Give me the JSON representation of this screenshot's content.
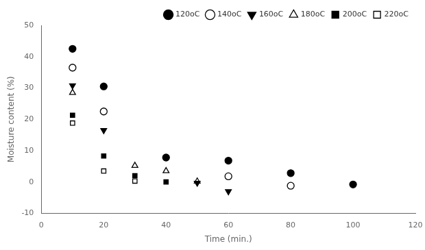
{
  "chart_data": {
    "type": "scatter",
    "x_label": "Time (min.)",
    "y_label": "Moisture content (%)",
    "xlim": [
      0,
      120
    ],
    "ylim": [
      -10,
      50
    ],
    "xticks": [
      0,
      20,
      40,
      60,
      80,
      100,
      120
    ],
    "yticks": [
      -10,
      0,
      10,
      20,
      30,
      40,
      50
    ],
    "grid": false,
    "legend": "upper right",
    "series": [
      {
        "name": "120oC",
        "color": "black",
        "marker": "circle",
        "x": [
          10,
          20,
          40,
          60,
          80,
          100
        ],
        "values": [
          42.5,
          30.5,
          7.8,
          6.8,
          2.8,
          -0.8
        ]
      },
      {
        "name": "140oC",
        "color": "black",
        "marker": "circle-open",
        "x": [
          10,
          20,
          60,
          80
        ],
        "values": [
          36.5,
          22.5,
          1.8,
          -1.2
        ]
      },
      {
        "name": "160oC",
        "color": "black",
        "marker": "triangle-down",
        "x": [
          10,
          20,
          50,
          60
        ],
        "values": [
          30.8,
          16.5,
          -0.3,
          -3.0
        ]
      },
      {
        "name": "180oC",
        "color": "black",
        "marker": "triangle-up-open",
        "x": [
          10,
          30,
          40,
          50
        ],
        "values": [
          28.5,
          5.2,
          3.5,
          0.2
        ]
      },
      {
        "name": "200oC",
        "color": "black",
        "marker": "square",
        "x": [
          10,
          20,
          30,
          40
        ],
        "values": [
          21.3,
          8.3,
          2.0,
          0.0
        ]
      },
      {
        "name": "220oC",
        "color": "black",
        "marker": "square-open",
        "x": [
          10,
          20,
          30
        ],
        "values": [
          18.8,
          3.5,
          0.3
        ]
      }
    ]
  }
}
